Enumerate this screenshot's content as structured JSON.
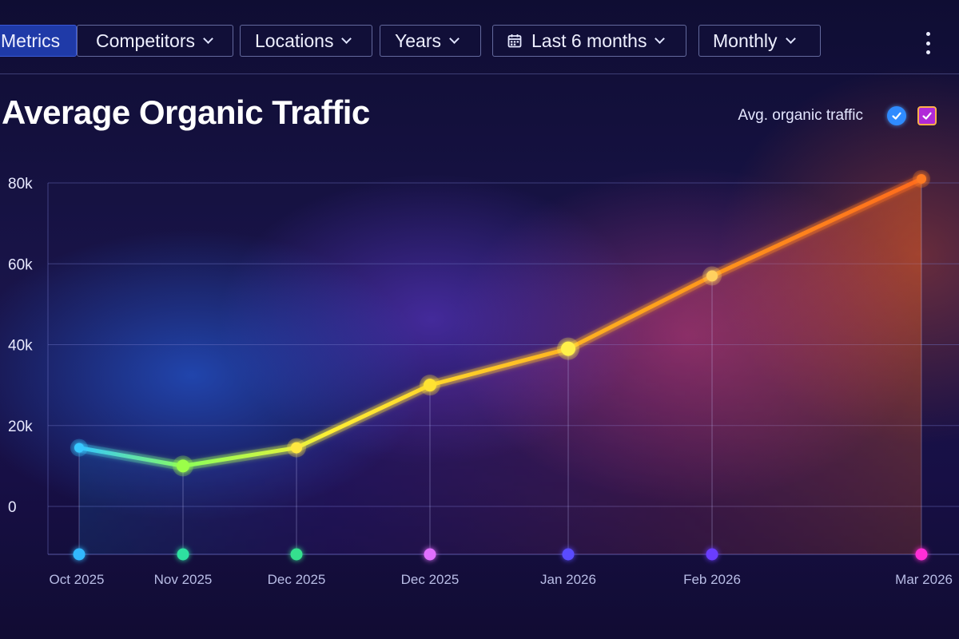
{
  "toolbar": {
    "buttons": [
      {
        "label": "Metrics",
        "has_chevron": false,
        "active": true
      },
      {
        "label": "Competitors",
        "has_chevron": true,
        "active": false
      },
      {
        "label": "Locations",
        "has_chevron": true,
        "active": false
      },
      {
        "label": "Years",
        "has_chevron": true,
        "active": false
      },
      {
        "label": "Last 6 months",
        "has_chevron": true,
        "active": false,
        "icon": "calendar-icon"
      },
      {
        "label": "Monthly",
        "has_chevron": true,
        "active": false
      }
    ],
    "more_icon": "kebab-menu-icon"
  },
  "legend": {
    "label": "Avg. organic traffic",
    "checkbox_colors": [
      "#2f8bff",
      "#b02ad8"
    ]
  },
  "colors": {
    "line_start": "#33c6ff",
    "line_mid": "#ffee33",
    "line_end": "#ff6a1a",
    "grid": "#6f73c6"
  },
  "chart_data": {
    "type": "line",
    "title": "Average Organic Traffic",
    "xlabel": "",
    "ylabel": "",
    "categories": [
      "Oct 2025",
      "Nov 2025",
      "Dec 2025",
      "Dec 2025",
      "Jan 2026",
      "Feb 2026",
      "Mar 2026"
    ],
    "series": [
      {
        "name": "Avg. organic traffic",
        "values": [
          14500,
          10000,
          14500,
          30000,
          39000,
          57000,
          81000
        ]
      }
    ],
    "y_ticks": [
      0,
      20000,
      40000,
      60000,
      80000
    ],
    "y_tick_labels": [
      "0",
      "20k",
      "40k",
      "60k",
      "80k"
    ],
    "ylim": [
      -12000,
      80000
    ],
    "x_marker_colors": [
      "#33b8ff",
      "#2fe0a0",
      "#34e08e",
      "#e070ff",
      "#5a4cff",
      "#6a3cff",
      "#ff2fd6"
    ],
    "grid": true,
    "legend_position": "top-right"
  }
}
